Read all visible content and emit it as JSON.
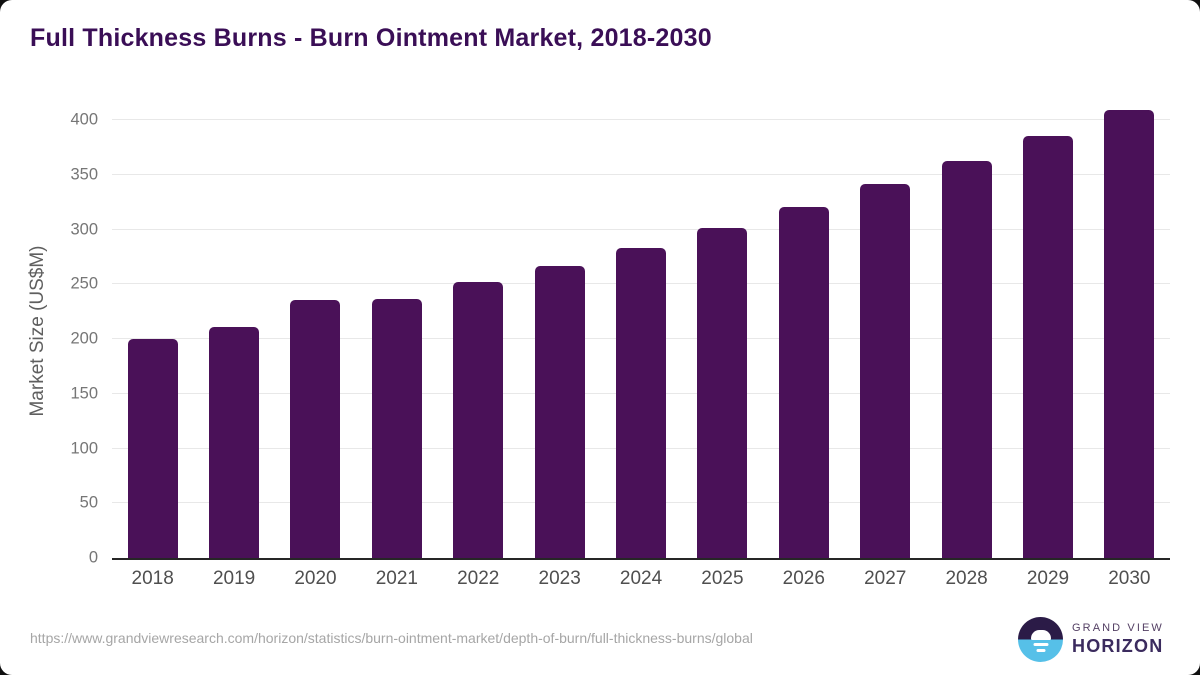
{
  "title": "Full Thickness Burns - Burn Ointment Market, 2018-2030",
  "source_url": "https://www.grandviewresearch.com/horizon/statistics/burn-ointment-market/depth-of-burn/full-thickness-burns/global",
  "branding": {
    "line1": "GRAND VIEW",
    "line2": "HORIZON",
    "icon": "sun-over-horizon-icon",
    "icon_dark_color": "#2b1b47",
    "icon_blue_color": "#56c0e8"
  },
  "colors": {
    "title": "#3a0e56",
    "bar": "#4a1158",
    "gridline": "#e8e8e8",
    "axis_line": "#262626",
    "tick_text": "#767676",
    "x_tick_text": "#4f4f4f",
    "y_axis_label_text": "#5f5f5f",
    "source_text": "#a6a6a6",
    "card_background": "#ffffff",
    "page_background": "#101010"
  },
  "chart_data": {
    "type": "bar",
    "title": "Full Thickness Burns - Burn Ointment Market, 2018-2030",
    "categories": [
      "2018",
      "2019",
      "2020",
      "2021",
      "2022",
      "2023",
      "2024",
      "2025",
      "2026",
      "2027",
      "2028",
      "2029",
      "2030"
    ],
    "values": [
      200,
      211,
      236,
      237,
      252,
      267,
      283,
      302,
      321,
      342,
      363,
      386,
      409
    ],
    "xlabel": "",
    "ylabel": "Market Size (US$M)",
    "ylim": [
      0,
      414
    ],
    "yticks": [
      0,
      50,
      100,
      150,
      200,
      250,
      300,
      350,
      400
    ],
    "grid": "horizontal",
    "legend": "none",
    "bar_color": "#4a1158"
  }
}
